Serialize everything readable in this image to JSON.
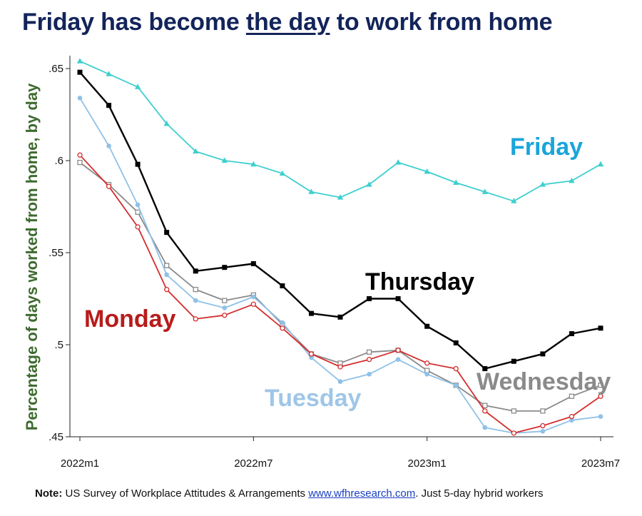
{
  "title": {
    "before": "Friday has become ",
    "emphasis": "the day",
    "after": " to work from home"
  },
  "note": {
    "label": "Note:",
    "text": " US Survey of Workplace Attitudes & Arrangements ",
    "link": "www.wfhresearch.com",
    "text2": ". Just 5-day hybrid workers"
  },
  "chart_data": {
    "type": "line",
    "ylabel": "Percentage of days worked from home, by day",
    "xlabel": "",
    "x": [
      "2022m1",
      "2022m2",
      "2022m3",
      "2022m4",
      "2022m5",
      "2022m6",
      "2022m7",
      "2022m8",
      "2022m9",
      "2022m10",
      "2022m11",
      "2022m12",
      "2023m1",
      "2023m2",
      "2023m3",
      "2023m4",
      "2023m5",
      "2023m6",
      "2023m7"
    ],
    "x_ticks": [
      "2022m1",
      "2022m7",
      "2023m1",
      "2023m7"
    ],
    "y_ticks": [
      ".45",
      ".5",
      ".55",
      ".6",
      ".65"
    ],
    "ylim": [
      0.45,
      0.657
    ],
    "grid": false,
    "legend": "direct labels",
    "series": [
      {
        "name": "Friday",
        "color": "#3fcfcf",
        "label_color": "#1aa5db",
        "marker": "triangle",
        "values": [
          0.654,
          0.647,
          0.64,
          0.62,
          0.605,
          0.6,
          0.598,
          0.593,
          0.583,
          0.58,
          0.587,
          0.599,
          0.594,
          0.588,
          0.583,
          0.578,
          0.587,
          0.589,
          0.598
        ]
      },
      {
        "name": "Thursday",
        "color": "#000000",
        "label_color": "#000000",
        "marker": "square",
        "values": [
          0.648,
          0.63,
          0.598,
          0.561,
          0.54,
          0.542,
          0.544,
          0.532,
          0.517,
          0.515,
          0.525,
          0.525,
          0.51,
          0.501,
          0.487,
          0.491,
          0.495,
          0.506,
          0.509
        ]
      },
      {
        "name": "Wednesday",
        "color": "#8a8a8a",
        "label_color": "#8a8a8a",
        "marker": "hollow-square",
        "values": [
          0.599,
          0.587,
          0.572,
          0.543,
          0.53,
          0.524,
          0.527,
          0.511,
          0.495,
          0.49,
          0.496,
          0.497,
          0.486,
          0.478,
          0.467,
          0.464,
          0.464,
          0.472,
          0.478
        ]
      },
      {
        "name": "Tuesday",
        "color": "#8fc1e8",
        "label_color": "#9fc6e8",
        "marker": "circle",
        "values": [
          0.634,
          0.608,
          0.576,
          0.538,
          0.524,
          0.52,
          0.526,
          0.512,
          0.493,
          0.48,
          0.484,
          0.492,
          0.484,
          0.478,
          0.455,
          0.452,
          0.453,
          0.459,
          0.461
        ]
      },
      {
        "name": "Monday",
        "color": "#d42d2d",
        "label_color": "#b81c1c",
        "marker": "hollow-circle",
        "values": [
          0.603,
          0.586,
          0.564,
          0.53,
          0.514,
          0.516,
          0.522,
          0.509,
          0.495,
          0.488,
          0.492,
          0.497,
          0.49,
          0.487,
          0.464,
          0.452,
          0.456,
          0.461,
          0.472
        ]
      }
    ]
  }
}
